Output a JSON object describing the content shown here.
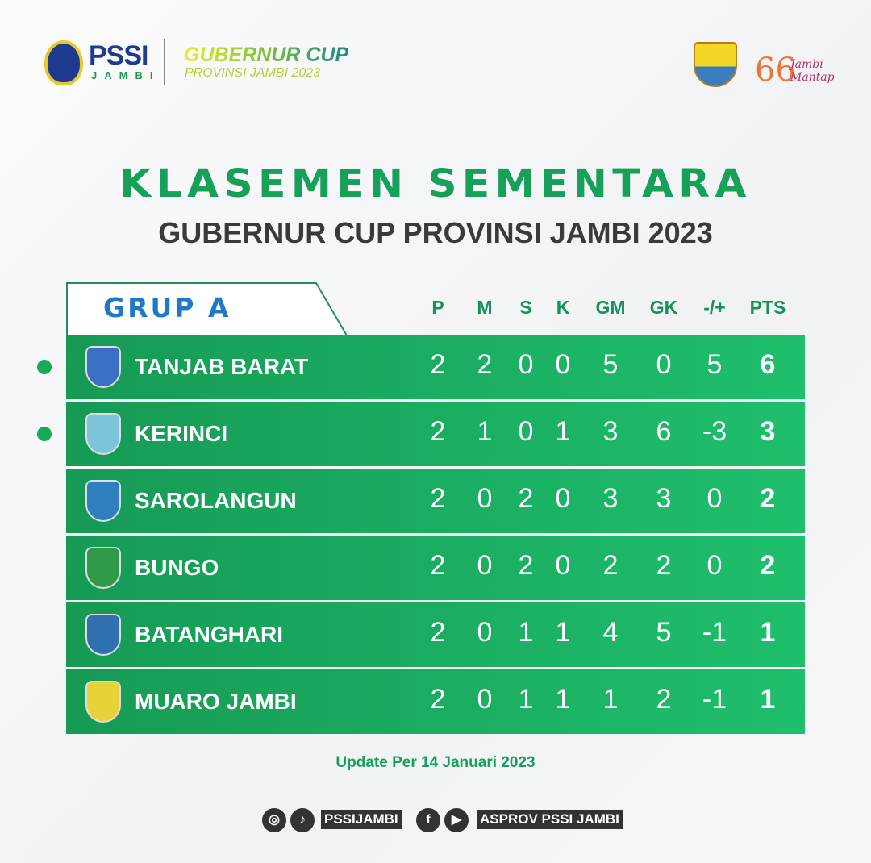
{
  "header": {
    "org": "PSSI",
    "org_sub": "JAMBI",
    "cup_title": "GUBERNUR CUP",
    "cup_sub": "PROVINSI JAMBI 2023",
    "anniv_num": "66",
    "anniv_text": "Jambi Mantap"
  },
  "title": "KLASEMEN SEMENTARA",
  "subtitle": "GUBERNUR CUP PROVINSI JAMBI 2023",
  "group": "GRUP A",
  "columns": [
    "P",
    "M",
    "S",
    "K",
    "GM",
    "GK",
    "-/+",
    "PTS"
  ],
  "colors": {
    "green": "#1aa85a",
    "blue": "#1f78c8",
    "dark": "#333333"
  },
  "rows": [
    {
      "team": "TANJAB BARAT",
      "stats": [
        "2",
        "2",
        "0",
        "0",
        "5",
        "0",
        "5",
        "6"
      ],
      "qualified": true,
      "crest_color": "#3b6fc4"
    },
    {
      "team": "KERINCI",
      "stats": [
        "2",
        "1",
        "0",
        "1",
        "3",
        "6",
        "-3",
        "3"
      ],
      "qualified": true,
      "crest_color": "#7cc4d8"
    },
    {
      "team": "SAROLANGUN",
      "stats": [
        "2",
        "0",
        "2",
        "0",
        "3",
        "3",
        "0",
        "2"
      ],
      "qualified": false,
      "crest_color": "#2e7fc0"
    },
    {
      "team": "BUNGO",
      "stats": [
        "2",
        "0",
        "2",
        "0",
        "2",
        "2",
        "0",
        "2"
      ],
      "qualified": false,
      "crest_color": "#2e9a4a"
    },
    {
      "team": "BATANGHARI",
      "stats": [
        "2",
        "0",
        "1",
        "1",
        "4",
        "5",
        "-1",
        "1"
      ],
      "qualified": false,
      "crest_color": "#2f70b0"
    },
    {
      "team": "MUARO JAMBI",
      "stats": [
        "2",
        "0",
        "1",
        "1",
        "1",
        "2",
        "-1",
        "1"
      ],
      "qualified": false,
      "crest_color": "#e8d23a"
    }
  ],
  "update": "Update Per 14 Januari 2023",
  "social": {
    "handle1": "PSSIJAMBI",
    "handle2": "ASPROV PSSI JAMBI",
    "icons": [
      "instagram-icon",
      "tiktok-icon",
      "facebook-icon",
      "youtube-icon"
    ]
  }
}
